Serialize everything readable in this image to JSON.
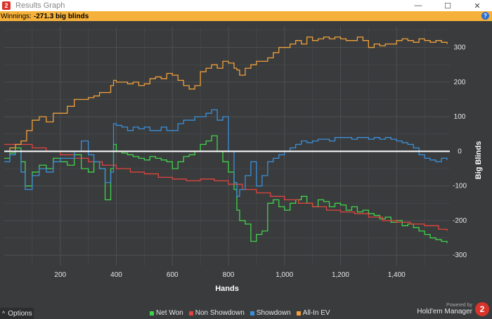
{
  "window": {
    "title": "Results Graph",
    "app_icon_glyph": "2",
    "controls": {
      "minimize": "—",
      "maximize": "☐",
      "close": "✕"
    }
  },
  "status": {
    "label": "Winnings:",
    "value": "-271.3 big blinds",
    "help_glyph": "?"
  },
  "footer": {
    "options_label": "Options",
    "options_glyph": "^",
    "powered_by": "Powered by",
    "brand_name": "Hold'em Manager",
    "brand_logo": "2"
  },
  "colors": {
    "background": "#3a3b3d",
    "grid": "#4e4f52",
    "net_won": "#3fd44a",
    "non_showdown": "#e0453f",
    "showdown": "#3a8fd8",
    "all_in_ev": "#f0a13a",
    "zero_line": "#ffffff"
  },
  "chart_data": {
    "type": "line",
    "title": "",
    "xlabel": "Hands",
    "ylabel": "Big Blinds",
    "xlim": [
      0,
      1590
    ],
    "ylim": [
      -330,
      360
    ],
    "x_ticks": [
      200,
      400,
      600,
      800,
      1000,
      1200,
      1400
    ],
    "x_tick_labels": [
      "200",
      "400",
      "600",
      "800",
      "1,000",
      "1,200",
      "1,400"
    ],
    "y_ticks": [
      300,
      200,
      100,
      0,
      -100,
      -200,
      -300
    ],
    "y_tick_labels": [
      "300",
      "200",
      "100",
      "0",
      "-100",
      "-200",
      "-300"
    ],
    "grid": true,
    "legend_position": "bottom",
    "series": [
      {
        "name": "Net Won",
        "color_key": "net_won",
        "x": [
          0,
          20,
          40,
          60,
          75,
          100,
          125,
          150,
          175,
          200,
          225,
          250,
          275,
          300,
          320,
          340,
          360,
          380,
          390,
          400,
          420,
          440,
          460,
          480,
          500,
          520,
          540,
          560,
          580,
          600,
          620,
          640,
          660,
          680,
          700,
          720,
          740,
          760,
          780,
          800,
          820,
          830,
          840,
          860,
          880,
          900,
          920,
          940,
          960,
          980,
          1000,
          1020,
          1040,
          1060,
          1080,
          1100,
          1120,
          1140,
          1160,
          1180,
          1200,
          1220,
          1240,
          1260,
          1280,
          1300,
          1320,
          1340,
          1360,
          1380,
          1400,
          1420,
          1440,
          1460,
          1480,
          1500,
          1520,
          1540,
          1560,
          1580
        ],
        "y": [
          -20,
          -5,
          10,
          -30,
          -100,
          -60,
          -40,
          -50,
          -20,
          -30,
          -40,
          -10,
          -50,
          -60,
          -30,
          -50,
          -140,
          -50,
          20,
          0,
          -5,
          -10,
          -15,
          -20,
          -25,
          -15,
          -20,
          -25,
          -30,
          -50,
          -30,
          -15,
          -10,
          0,
          20,
          30,
          45,
          0,
          -30,
          -60,
          -110,
          -170,
          -200,
          -210,
          -260,
          -240,
          -230,
          -150,
          -140,
          -160,
          -170,
          -150,
          -140,
          -130,
          -150,
          -160,
          -140,
          -145,
          -160,
          -150,
          -155,
          -170,
          -160,
          -175,
          -170,
          -180,
          -185,
          -195,
          -190,
          -205,
          -200,
          -215,
          -210,
          -220,
          -230,
          -240,
          -250,
          -255,
          -260,
          -265
        ]
      },
      {
        "name": "Non Showdown",
        "color_key": "non_showdown",
        "x": [
          0,
          50,
          100,
          150,
          200,
          250,
          300,
          350,
          400,
          450,
          500,
          550,
          600,
          650,
          700,
          750,
          800,
          850,
          900,
          950,
          1000,
          1050,
          1100,
          1150,
          1200,
          1250,
          1300,
          1350,
          1400,
          1450,
          1500,
          1550,
          1580
        ],
        "y": [
          20,
          20,
          10,
          0,
          -10,
          -20,
          -30,
          -40,
          -50,
          -60,
          -65,
          -75,
          -80,
          -85,
          -80,
          -85,
          -95,
          -110,
          -120,
          -130,
          -140,
          -150,
          -160,
          -170,
          -175,
          -180,
          -190,
          -200,
          -205,
          -210,
          -215,
          -225,
          -230
        ]
      },
      {
        "name": "Showdown",
        "color_key": "showdown",
        "x": [
          0,
          20,
          40,
          60,
          75,
          100,
          125,
          150,
          175,
          200,
          225,
          250,
          275,
          300,
          320,
          340,
          360,
          380,
          390,
          400,
          420,
          440,
          460,
          480,
          500,
          520,
          540,
          560,
          580,
          600,
          620,
          640,
          660,
          680,
          700,
          720,
          740,
          760,
          780,
          800,
          820,
          830,
          840,
          860,
          880,
          900,
          920,
          940,
          960,
          980,
          1000,
          1020,
          1040,
          1060,
          1080,
          1100,
          1120,
          1140,
          1160,
          1180,
          1200,
          1220,
          1240,
          1260,
          1280,
          1300,
          1320,
          1340,
          1360,
          1380,
          1400,
          1420,
          1440,
          1460,
          1480,
          1500,
          1520,
          1540,
          1560,
          1580
        ],
        "y": [
          -30,
          -10,
          0,
          -60,
          -110,
          -70,
          -50,
          -60,
          -30,
          -20,
          -20,
          0,
          30,
          -10,
          -30,
          -50,
          -90,
          -60,
          80,
          75,
          70,
          60,
          70,
          65,
          70,
          60,
          60,
          70,
          60,
          60,
          80,
          90,
          90,
          100,
          100,
          110,
          120,
          90,
          100,
          0,
          -90,
          -130,
          -110,
          -70,
          -30,
          -100,
          -70,
          -30,
          -20,
          -10,
          0,
          10,
          20,
          30,
          25,
          30,
          35,
          35,
          30,
          40,
          40,
          40,
          35,
          40,
          40,
          35,
          40,
          35,
          40,
          35,
          30,
          25,
          20,
          10,
          -10,
          -20,
          -25,
          -30,
          -20,
          -25
        ]
      },
      {
        "name": "All-In EV",
        "color_key": "all_in_ev",
        "x": [
          0,
          20,
          40,
          60,
          80,
          100,
          125,
          150,
          175,
          200,
          225,
          250,
          275,
          300,
          320,
          340,
          360,
          380,
          390,
          400,
          420,
          440,
          460,
          480,
          500,
          520,
          540,
          560,
          580,
          600,
          620,
          640,
          660,
          680,
          700,
          720,
          740,
          760,
          780,
          800,
          820,
          830,
          840,
          860,
          880,
          900,
          920,
          940,
          960,
          980,
          1000,
          1020,
          1040,
          1060,
          1080,
          1100,
          1120,
          1140,
          1160,
          1180,
          1200,
          1220,
          1240,
          1260,
          1280,
          1300,
          1320,
          1340,
          1360,
          1380,
          1400,
          1420,
          1440,
          1460,
          1480,
          1500,
          1520,
          1540,
          1560,
          1580
        ],
        "y": [
          0,
          10,
          20,
          30,
          60,
          90,
          100,
          85,
          110,
          110,
          130,
          150,
          150,
          155,
          160,
          170,
          170,
          190,
          205,
          200,
          200,
          195,
          200,
          190,
          195,
          210,
          215,
          210,
          225,
          220,
          205,
          190,
          180,
          190,
          230,
          240,
          250,
          240,
          260,
          255,
          240,
          235,
          220,
          240,
          250,
          260,
          260,
          270,
          285,
          300,
          300,
          310,
          320,
          310,
          330,
          320,
          325,
          330,
          325,
          330,
          325,
          320,
          320,
          330,
          320,
          300,
          310,
          305,
          310,
          310,
          320,
          325,
          320,
          315,
          325,
          320,
          315,
          320,
          315,
          310
        ]
      }
    ]
  }
}
